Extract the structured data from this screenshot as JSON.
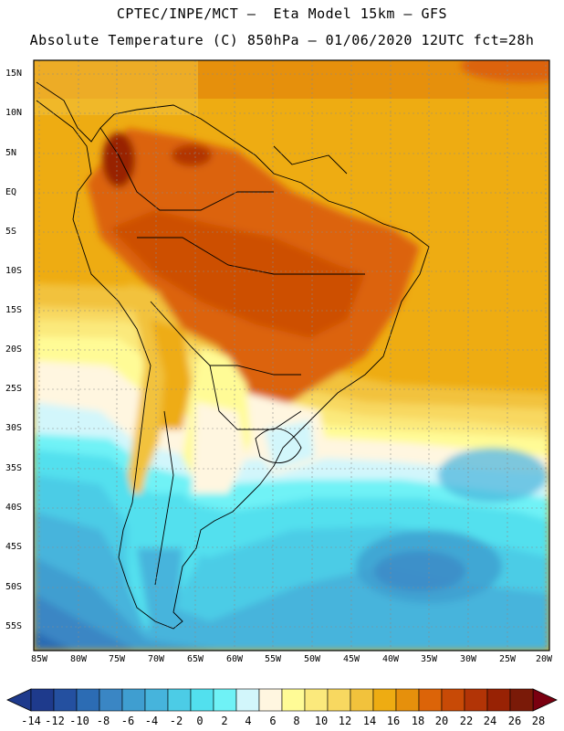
{
  "header": {
    "line1": "CPTEC/INPE/MCT –  Eta Model 15km – GFS",
    "line2": "Absolute Temperature (C) 850hPa – 01/06/2020 12UTC fct=28h"
  },
  "axes": {
    "lat_labels": [
      "15N",
      "10N",
      "5N",
      "EQ",
      "5S",
      "10S",
      "15S",
      "20S",
      "25S",
      "30S",
      "35S",
      "40S",
      "45S",
      "50S",
      "55S"
    ],
    "lon_labels": [
      "85W",
      "80W",
      "75W",
      "70W",
      "65W",
      "60W",
      "55W",
      "50W",
      "45W",
      "40W",
      "35W",
      "30W",
      "25W",
      "20W"
    ]
  },
  "colorbar": {
    "labels": [
      "-14",
      "-12",
      "-10",
      "-8",
      "-6",
      "-4",
      "-2",
      "0",
      "2",
      "4",
      "6",
      "8",
      "10",
      "12",
      "14",
      "16",
      "18",
      "20",
      "22",
      "24",
      "26",
      "28"
    ],
    "colors": [
      "#1e3a8c",
      "#2450a0",
      "#2c6cb4",
      "#3a86c4",
      "#3f9ed0",
      "#46b4dc",
      "#4ccce6",
      "#52e0ee",
      "#6ff2f6",
      "#d2f6fb",
      "#fff6e0",
      "#fffb96",
      "#fbe97c",
      "#f8d860",
      "#f2c23c",
      "#eeac12",
      "#e6900c",
      "#dc6408",
      "#c84a06",
      "#b23406",
      "#982204",
      "#7a1a08"
    ]
  },
  "map": {
    "region": "South America",
    "variable": "temperature-850hPa"
  }
}
